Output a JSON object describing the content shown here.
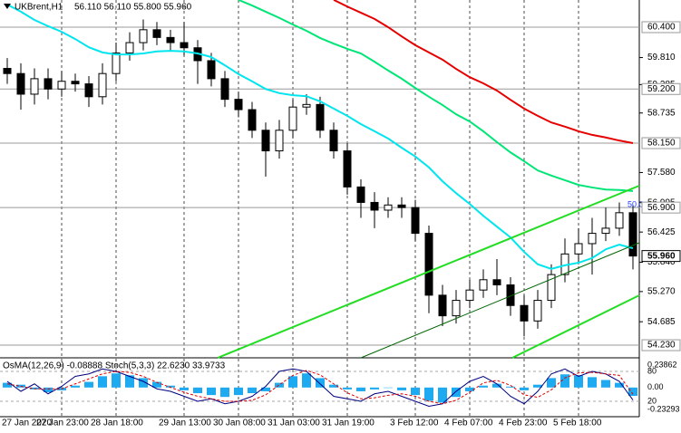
{
  "chart_data": [
    {
      "type": "candlestick",
      "title": "UKBrent,H1",
      "subtitle": "56.110 56.110 55.800 55.960",
      "categories": [
        "27 Jan 2020",
        null,
        null,
        null,
        "27 Jan 23:00",
        null,
        null,
        null,
        "28 Jan 18:00",
        null,
        null,
        null,
        null,
        "29 Jan 13:00",
        null,
        null,
        null,
        "30 Jan 08:00",
        null,
        null,
        null,
        "31 Jan 03:00",
        null,
        null,
        null,
        "31 Jan 19:00",
        null,
        null,
        null,
        null,
        "3 Feb 12:00",
        null,
        null,
        null,
        "4 Feb 07:00",
        null,
        null,
        null,
        "4 Feb 23:00",
        null,
        null,
        null,
        "5 Feb 18:00",
        null,
        null,
        null,
        null
      ],
      "open": [
        59.6,
        59.5,
        59.1,
        59.4,
        59.2,
        59.35,
        59.3,
        59.05,
        59.5,
        59.9,
        60.1,
        60.35,
        60.2,
        60.1,
        60.0,
        59.75,
        59.4,
        59.0,
        58.8,
        58.4,
        58.0,
        58.4,
        58.85,
        58.9,
        58.4,
        58.0,
        57.3,
        57.0,
        56.85,
        56.95,
        56.9,
        56.4,
        55.2,
        54.8,
        55.1,
        55.3,
        55.5,
        55.4,
        55.0,
        54.7,
        55.1,
        55.6,
        56.0,
        56.2,
        56.4,
        56.5,
        56.8
      ],
      "high": [
        59.8,
        59.7,
        59.6,
        59.6,
        59.55,
        59.5,
        59.45,
        59.7,
        60.1,
        60.3,
        60.55,
        60.5,
        60.35,
        60.5,
        60.15,
        59.9,
        59.55,
        59.15,
        58.95,
        58.55,
        58.6,
        59.0,
        59.1,
        59.05,
        58.55,
        58.15,
        57.45,
        57.2,
        57.1,
        57.1,
        57.05,
        56.55,
        55.4,
        55.3,
        55.5,
        55.7,
        55.9,
        55.55,
        55.2,
        55.3,
        55.8,
        56.3,
        56.5,
        56.7,
        56.9,
        57.0,
        56.95
      ],
      "low": [
        59.3,
        58.8,
        58.9,
        59.0,
        59.05,
        59.15,
        58.85,
        58.9,
        59.35,
        59.75,
        59.95,
        60.05,
        59.95,
        59.85,
        59.3,
        59.25,
        58.85,
        58.65,
        58.25,
        57.5,
        57.85,
        58.25,
        58.7,
        58.25,
        57.85,
        57.15,
        56.7,
        56.5,
        56.7,
        56.7,
        56.25,
        54.85,
        54.6,
        54.65,
        54.95,
        55.15,
        55.2,
        54.8,
        54.4,
        54.55,
        54.95,
        55.45,
        55.8,
        55.6,
        56.25,
        56.35,
        55.7
      ],
      "close": [
        59.5,
        59.1,
        59.4,
        59.2,
        59.35,
        59.3,
        59.05,
        59.5,
        59.9,
        60.1,
        60.35,
        60.2,
        60.1,
        60.0,
        59.75,
        59.4,
        59.0,
        58.8,
        58.4,
        58.0,
        58.4,
        58.85,
        58.9,
        58.4,
        58.0,
        57.3,
        57.0,
        56.85,
        56.95,
        56.9,
        56.4,
        55.2,
        54.8,
        55.1,
        55.3,
        55.5,
        55.4,
        55.0,
        54.7,
        55.1,
        55.6,
        56.0,
        56.2,
        56.4,
        56.5,
        56.8,
        55.96
      ],
      "series": [
        {
          "color": "#00e5ee",
          "values": [
            60.84,
            60.7,
            60.54,
            60.42,
            60.31,
            60.17,
            60.01,
            59.91,
            59.87,
            59.87,
            59.89,
            59.93,
            59.94,
            59.93,
            59.89,
            59.82,
            59.66,
            59.49,
            59.35,
            59.2,
            59.12,
            59.08,
            59.06,
            58.96,
            58.82,
            58.68,
            58.52,
            58.38,
            58.24,
            58.06,
            57.89,
            57.68,
            57.41,
            57.18,
            56.97,
            56.74,
            56.53,
            56.32,
            56.04,
            55.8,
            55.71,
            55.78,
            55.83,
            55.92,
            56.09,
            56.18,
            56.11
          ]
        },
        {
          "color": "#00e676",
          "values": [
            null,
            null,
            null,
            null,
            null,
            null,
            null,
            null,
            null,
            null,
            null,
            null,
            null,
            null,
            null,
            null,
            null,
            60.93,
            60.82,
            60.7,
            60.58,
            60.45,
            60.33,
            60.19,
            60.08,
            59.98,
            59.89,
            59.73,
            59.56,
            59.4,
            59.22,
            59.05,
            58.89,
            58.71,
            58.57,
            58.38,
            58.17,
            57.97,
            57.8,
            57.62,
            57.52,
            57.43,
            57.34,
            57.29,
            57.25,
            57.24,
            57.22
          ]
        },
        {
          "color": "#e60000",
          "values": [
            null,
            null,
            null,
            null,
            null,
            null,
            null,
            null,
            null,
            null,
            null,
            null,
            null,
            null,
            null,
            null,
            null,
            null,
            null,
            null,
            null,
            null,
            null,
            null,
            60.93,
            60.8,
            60.68,
            60.56,
            60.4,
            60.22,
            60.05,
            59.91,
            59.77,
            59.59,
            59.43,
            59.31,
            59.17,
            58.99,
            58.82,
            58.68,
            58.55,
            58.47,
            58.38,
            58.31,
            58.26,
            58.2,
            58.15
          ]
        }
      ],
      "ylim": [
        53.985,
        60.927
      ],
      "yticks": [
        {
          "value": 59.81,
          "label": "59.810"
        },
        {
          "value": 59.285,
          "label": "59.285"
        },
        {
          "value": 58.735,
          "label": "58.735"
        },
        {
          "value": 57.58,
          "label": "57.580"
        },
        {
          "value": 56.995,
          "label": "56.995"
        },
        {
          "value": 56.425,
          "label": "56.425"
        },
        {
          "value": 55.84,
          "label": "55.840"
        },
        {
          "value": 55.27,
          "label": "55.270"
        },
        {
          "value": 54.685,
          "label": "54.685"
        }
      ],
      "levels": [
        {
          "value": 60.4,
          "label": "60.400"
        },
        {
          "value": 59.2,
          "label": "59.200"
        },
        {
          "value": 58.15,
          "label": "58.150"
        },
        {
          "value": 56.9,
          "label": "56.900"
        },
        {
          "value": 54.23,
          "label": "54.230"
        }
      ],
      "last": {
        "value": 55.96,
        "label": "55.960"
      },
      "annotation": "50.0"
    },
    {
      "type": "oscillator",
      "title": "OsMA(12,26,9) -0.08888  Stoch(5,3,3) 22.6230 33.9733",
      "series": [
        {
          "color": "#1eaaf0",
          "values": [
            0.05,
            0.03,
            -0.02,
            -0.05,
            -0.03,
            0.02,
            0.06,
            0.12,
            0.15,
            0.13,
            0.1,
            0.06,
            0.02,
            -0.03,
            -0.06,
            -0.08,
            -0.1,
            -0.08,
            -0.06,
            -0.04,
            0.05,
            0.12,
            0.15,
            0.1,
            0.03,
            -0.02,
            -0.04,
            -0.02,
            0.0,
            -0.03,
            -0.08,
            -0.14,
            -0.16,
            -0.1,
            -0.04,
            0.02,
            0.04,
            0.01,
            -0.03,
            0.03,
            0.1,
            0.14,
            0.13,
            0.11,
            0.08,
            0.05,
            -0.08888
          ]
        },
        {
          "color": "#000080",
          "axis": "y2",
          "values": [
            60,
            40,
            55,
            35,
            50,
            70,
            75,
            85,
            80,
            70,
            60,
            45,
            40,
            30,
            20,
            25,
            15,
            20,
            30,
            50,
            80,
            85,
            80,
            55,
            30,
            25,
            20,
            35,
            40,
            30,
            20,
            10,
            15,
            40,
            60,
            70,
            55,
            30,
            15,
            40,
            75,
            85,
            70,
            80,
            75,
            60,
            22.623
          ]
        },
        {
          "color": "#e00000",
          "axis": "y2",
          "values": [
            55,
            50,
            45,
            45,
            45,
            55,
            65,
            75,
            80,
            78,
            70,
            58,
            48,
            38,
            30,
            25,
            20,
            20,
            22,
            33,
            53,
            72,
            82,
            73,
            55,
            37,
            25,
            27,
            32,
            35,
            30,
            20,
            15,
            22,
            38,
            57,
            62,
            52,
            33,
            28,
            43,
            67,
            77,
            78,
            75,
            72,
            33.9733
          ]
        }
      ],
      "ylim": [
        -0.23293,
        0.23862
      ],
      "yticks": [
        0.23862,
        {
          "value": 0,
          "label": "0.00"
        },
        -0.23293
      ],
      "y2lim": [
        0,
        100
      ],
      "y2ticks": [
        80,
        20
      ]
    }
  ]
}
